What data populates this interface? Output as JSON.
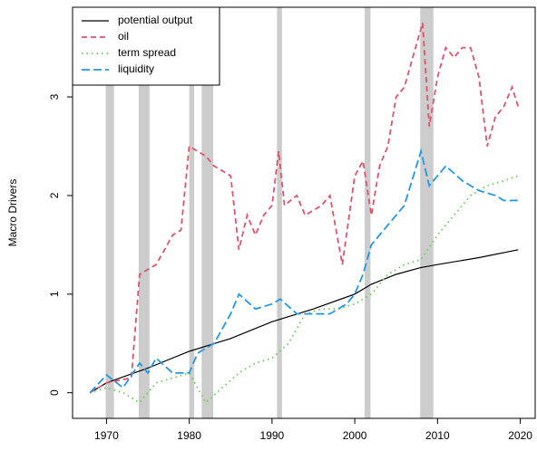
{
  "chart_data": {
    "type": "line",
    "y_label": "Macro Drivers",
    "xlim": [
      1965.9,
      2021.8
    ],
    "ylim": [
      -0.26,
      3.91
    ],
    "xticks": [
      1970,
      1980,
      1990,
      2000,
      2010,
      2020
    ],
    "yticks": [
      0,
      1,
      2,
      3
    ],
    "legend": "top-left",
    "shading_color": "#cccccc",
    "recessions": [
      [
        1969.9,
        1970.9
      ],
      [
        1973.9,
        1975.2
      ],
      [
        1980.0,
        1980.6
      ],
      [
        1981.5,
        1982.9
      ],
      [
        1990.6,
        1991.2
      ],
      [
        2001.2,
        2001.9
      ],
      [
        2007.9,
        2009.5
      ]
    ],
    "series": [
      {
        "name": "potential output",
        "color": "#000000",
        "dash": "solid",
        "x": [
          1968,
          1970,
          1975,
          1980,
          1985,
          1990,
          1995,
          2000,
          2002,
          2005,
          2008,
          2010,
          2015,
          2019.75
        ],
        "values": [
          0,
          0.1,
          0.25,
          0.42,
          0.55,
          0.72,
          0.85,
          1.0,
          1.1,
          1.2,
          1.27,
          1.3,
          1.37,
          1.45
        ]
      },
      {
        "name": "oil",
        "color": "#DF536B",
        "dash": "dashed",
        "x": [
          1968,
          1970,
          1973,
          1974,
          1976,
          1978,
          1979,
          1980,
          1981,
          1982,
          1983,
          1985,
          1986,
          1987,
          1988,
          1989,
          1990,
          1990.8,
          1991.5,
          1993,
          1994,
          1996,
          1997,
          1998.5,
          2000,
          2001,
          2002,
          2003,
          2004,
          2005,
          2006,
          2007,
          2008.2,
          2009,
          2010,
          2011,
          2012,
          2013,
          2014,
          2015,
          2016,
          2017,
          2018,
          2019,
          2019.75
        ],
        "values": [
          0,
          0.1,
          0.15,
          1.2,
          1.3,
          1.6,
          1.65,
          2.5,
          2.45,
          2.4,
          2.3,
          2.2,
          1.45,
          1.8,
          1.6,
          1.8,
          1.9,
          2.45,
          1.9,
          2.0,
          1.8,
          1.9,
          2.0,
          1.3,
          2.2,
          2.35,
          1.8,
          2.3,
          2.5,
          3.0,
          3.1,
          3.4,
          3.75,
          2.7,
          3.2,
          3.5,
          3.4,
          3.5,
          3.5,
          3.2,
          2.5,
          2.8,
          2.9,
          3.1,
          2.9
        ]
      },
      {
        "name": "term spread",
        "color": "#61D04F",
        "dash": "dotted",
        "x": [
          1968,
          1970,
          1972,
          1974,
          1976,
          1978,
          1980,
          1982,
          1984,
          1986,
          1988,
          1990,
          1992,
          1994,
          1996,
          1998,
          2000,
          2002,
          2004,
          2006,
          2008,
          2010,
          2012,
          2014,
          2016,
          2018,
          2019.75
        ],
        "values": [
          0,
          0.05,
          0.0,
          -0.1,
          0.1,
          0.15,
          0.2,
          -0.1,
          0.05,
          0.2,
          0.3,
          0.35,
          0.5,
          0.8,
          0.85,
          0.85,
          0.9,
          1.0,
          1.2,
          1.3,
          1.35,
          1.6,
          1.8,
          2.0,
          2.1,
          2.15,
          2.2
        ]
      },
      {
        "name": "liquidity",
        "color": "#2297E6",
        "dash": "longdash",
        "x": [
          1968,
          1970,
          1972,
          1974,
          1975,
          1976,
          1978,
          1980,
          1981,
          1983,
          1985,
          1986,
          1988,
          1990,
          1991,
          1993,
          1995,
          1997,
          1999,
          2000,
          2001,
          2002,
          2004,
          2006,
          2008,
          2009,
          2011,
          2013,
          2015,
          2017,
          2018,
          2019.75
        ],
        "values": [
          0,
          0.18,
          0.05,
          0.3,
          0.2,
          0.35,
          0.2,
          0.2,
          0.4,
          0.5,
          0.8,
          1.0,
          0.85,
          0.9,
          0.95,
          0.8,
          0.8,
          0.8,
          0.9,
          1.0,
          1.2,
          1.5,
          1.7,
          1.9,
          2.45,
          2.1,
          2.3,
          2.15,
          2.05,
          2.0,
          1.95,
          1.95
        ]
      }
    ]
  }
}
